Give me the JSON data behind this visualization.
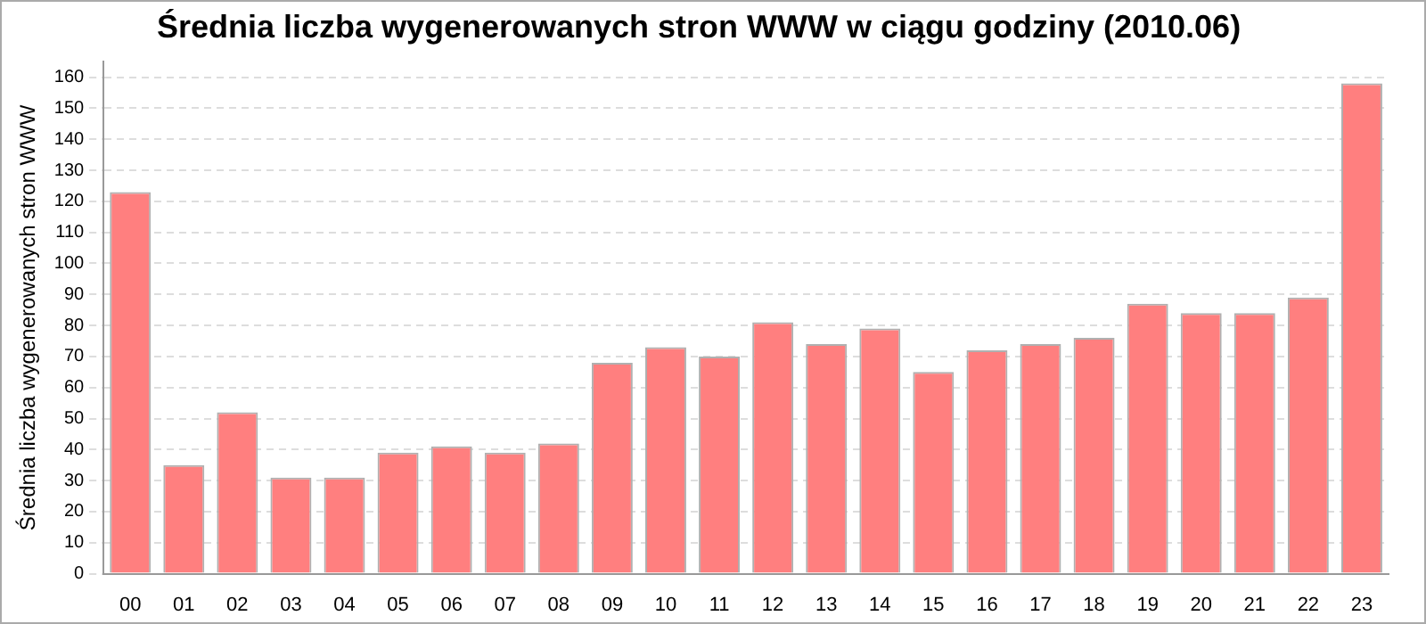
{
  "chart_data": {
    "type": "bar",
    "title": "Średnia liczba wygenerowanych stron WWW w ciągu godziny (2010.06)",
    "ylabel": "Średnia liczba wygenerowanych stron WWW",
    "categories": [
      "00",
      "01",
      "02",
      "03",
      "04",
      "05",
      "06",
      "07",
      "08",
      "09",
      "10",
      "11",
      "12",
      "13",
      "14",
      "15",
      "16",
      "17",
      "18",
      "19",
      "20",
      "21",
      "22",
      "23"
    ],
    "values": [
      123,
      35,
      52,
      31,
      31,
      39,
      41,
      39,
      42,
      68,
      73,
      70,
      81,
      74,
      79,
      65,
      72,
      74,
      76,
      87,
      84,
      84,
      89,
      158
    ],
    "color": "#ff7f7f",
    "ylim": [
      0,
      165
    ],
    "yticks": [
      0,
      10,
      20,
      30,
      40,
      50,
      60,
      70,
      80,
      90,
      100,
      110,
      120,
      130,
      140,
      150,
      160
    ],
    "grid": "y"
  }
}
